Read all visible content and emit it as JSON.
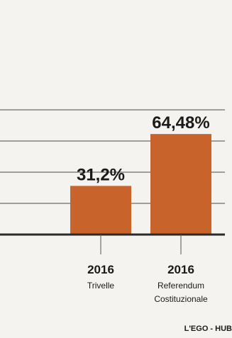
{
  "chart_data": {
    "type": "bar",
    "categories": [
      {
        "year": "2016",
        "lines": [
          "Trivelle"
        ]
      },
      {
        "year": "2016",
        "lines": [
          "Referendum",
          "Costituzionale"
        ]
      }
    ],
    "values": [
      31.2,
      64.48
    ],
    "value_labels": [
      "31,2%",
      "64,48%"
    ],
    "ylim": [
      0,
      80
    ],
    "grid": true,
    "bar_color": "#c8642b"
  },
  "source": "L'EGO - HUB"
}
